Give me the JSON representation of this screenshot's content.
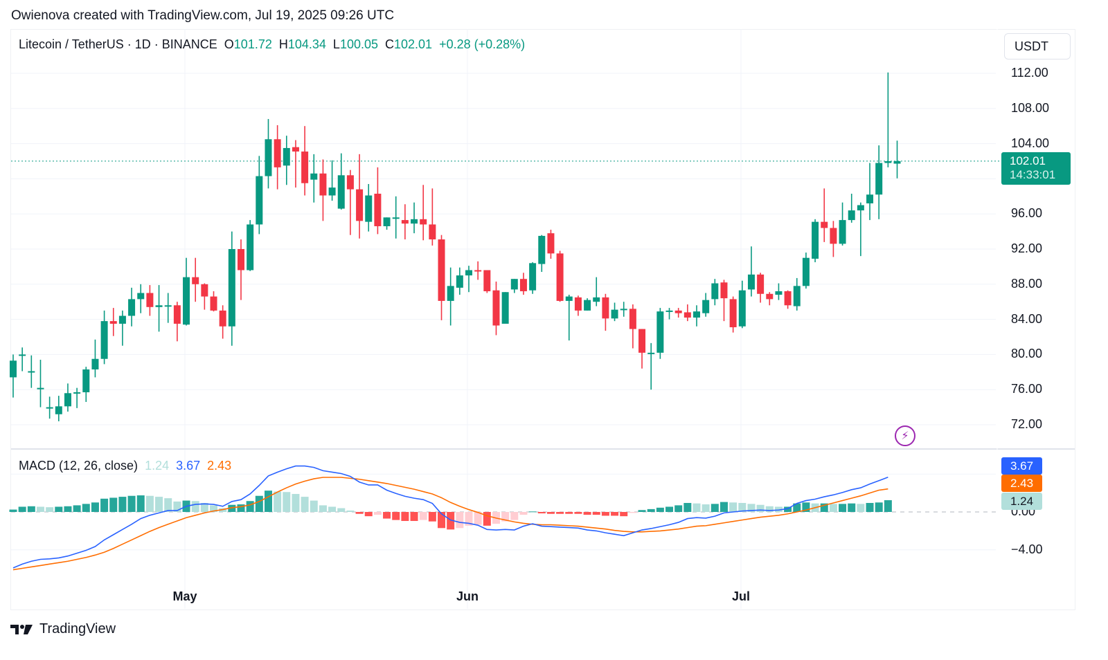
{
  "caption": "Owienova created with TradingView.com, Jul 19, 2025 09:26 UTC",
  "legend": {
    "symbol": "Litecoin / TetherUS · 1D · BINANCE",
    "open_label": "O",
    "open": "101.72",
    "high_label": "H",
    "high": "104.34",
    "low_label": "L",
    "low": "100.05",
    "close_label": "C",
    "close": "102.01",
    "change": "+0.28 (+0.28%)"
  },
  "currency": "USDT",
  "price_tag": {
    "price": "102.01",
    "countdown": "14:33:01"
  },
  "macd": {
    "title": "MACD (12, 26, close)",
    "histogram": "1.24",
    "macd": "3.67",
    "signal": "2.43",
    "tags": {
      "macd": "3.67",
      "signal": "2.43",
      "histogram": "1.24"
    }
  },
  "brand": "TradingView",
  "colors": {
    "up": "#089981",
    "down": "#f23645",
    "macd_line": "#2962ff",
    "signal_line": "#ff6d00",
    "hist_up_strong": "#26a69a",
    "hist_up_weak": "#b2dfdb",
    "hist_down_strong": "#ff5252",
    "hist_down_weak": "#ffcdd2",
    "alert_icon": "#9c27b0"
  },
  "chart_data": [
    {
      "type": "candlestick",
      "title": "Litecoin / TetherUS · 1D · BINANCE",
      "xlabel": "",
      "ylabel": "USDT",
      "x_ticks": [
        "May",
        "Jun",
        "Jul"
      ],
      "y_ticks": [
        "112.00",
        "108.00",
        "104.00",
        "96.00",
        "92.00",
        "88.00",
        "84.00",
        "80.00",
        "76.00",
        "72.00"
      ],
      "ylim": [
        70.5,
        115
      ],
      "last_price": 102.01,
      "x_start": "2025-04-12",
      "x_end": "2025-07-19",
      "ohlc": [
        [
          77.4,
          79.3,
          75.1,
          80.0
        ],
        [
          80.0,
          80.0,
          78.1,
          80.8
        ],
        [
          78.1,
          78.1,
          76.2,
          79.9
        ],
        [
          76.2,
          76.2,
          74.0,
          79.4
        ],
        [
          74.0,
          74.0,
          72.7,
          75.2
        ],
        [
          73.2,
          74.1,
          72.4,
          75.3
        ],
        [
          74.1,
          75.6,
          73.5,
          76.7
        ],
        [
          75.6,
          75.7,
          73.9,
          76.2
        ],
        [
          75.7,
          78.3,
          74.6,
          78.6
        ],
        [
          78.3,
          79.5,
          77.4,
          81.7
        ],
        [
          79.5,
          83.8,
          78.9,
          85.0
        ],
        [
          83.8,
          83.5,
          82.1,
          85.3
        ],
        [
          83.5,
          84.4,
          81.0,
          85.0
        ],
        [
          84.4,
          86.3,
          83.2,
          87.6
        ],
        [
          86.3,
          87.0,
          84.7,
          88.0
        ],
        [
          87.0,
          85.4,
          84.4,
          87.9
        ],
        [
          85.4,
          85.6,
          82.6,
          87.9
        ],
        [
          85.6,
          85.6,
          83.6,
          87.0
        ],
        [
          85.6,
          83.5,
          81.5,
          86.0
        ],
        [
          83.4,
          88.8,
          83.3,
          91.0
        ],
        [
          88.8,
          88.0,
          86.0,
          91.0
        ],
        [
          88.0,
          86.6,
          85.1,
          88.1
        ],
        [
          86.6,
          85.0,
          84.9,
          87.2
        ],
        [
          85.0,
          83.2,
          81.8,
          85.6
        ],
        [
          83.2,
          92.0,
          81.0,
          94.0
        ],
        [
          92.0,
          89.6,
          86.2,
          93.1
        ],
        [
          89.6,
          94.8,
          89.5,
          95.3
        ],
        [
          94.8,
          100.3,
          93.7,
          102.6
        ],
        [
          100.3,
          104.5,
          98.9,
          106.8
        ],
        [
          104.5,
          101.3,
          98.8,
          106.1
        ],
        [
          101.5,
          103.5,
          99.3,
          104.9
        ],
        [
          103.6,
          103.1,
          99.0,
          104.4
        ],
        [
          103.1,
          99.5,
          98.1,
          106.0
        ],
        [
          99.9,
          100.6,
          97.3,
          102.8
        ],
        [
          100.6,
          98.1,
          95.2,
          102.2
        ],
        [
          98.1,
          99.0,
          97.5,
          102.1
        ],
        [
          96.6,
          100.4,
          96.5,
          102.9
        ],
        [
          100.4,
          98.8,
          93.6,
          101.0
        ],
        [
          98.8,
          95.2,
          93.2,
          102.8
        ],
        [
          95.1,
          98.1,
          94.0,
          99.4
        ],
        [
          98.3,
          94.6,
          93.7,
          101.3
        ],
        [
          94.6,
          95.6,
          94.2,
          95.6
        ],
        [
          95.6,
          95.6,
          93.2,
          98.0
        ],
        [
          95.3,
          94.9,
          93.1,
          97.1
        ],
        [
          94.9,
          95.4,
          93.8,
          97.3
        ],
        [
          95.4,
          94.8,
          93.0,
          99.3
        ],
        [
          94.8,
          93.1,
          92.4,
          98.9
        ],
        [
          93.1,
          86.1,
          83.9,
          93.6
        ],
        [
          86.1,
          87.8,
          83.3,
          89.9
        ],
        [
          87.6,
          89.0,
          86.8,
          89.9
        ],
        [
          89.0,
          89.6,
          87.1,
          90.1
        ],
        [
          89.6,
          89.5,
          88.5,
          90.6
        ],
        [
          89.6,
          87.2,
          87.0,
          89.5
        ],
        [
          87.3,
          83.3,
          82.2,
          88.3
        ],
        [
          83.5,
          87.1,
          83.6,
          87.1
        ],
        [
          87.4,
          88.6,
          87.0,
          88.6
        ],
        [
          88.6,
          87.2,
          86.8,
          89.3
        ],
        [
          87.3,
          90.4,
          86.9,
          90.5
        ],
        [
          90.3,
          93.5,
          89.4,
          93.6
        ],
        [
          93.8,
          91.5,
          90.9,
          94.2
        ],
        [
          91.5,
          86.1,
          86.0,
          91.8
        ],
        [
          86.1,
          86.6,
          81.6,
          86.8
        ],
        [
          86.5,
          85.0,
          84.4,
          86.7
        ],
        [
          85.0,
          86.2,
          85.0,
          86.4
        ],
        [
          86.0,
          86.5,
          85.5,
          88.8
        ],
        [
          86.5,
          84.1,
          82.7,
          86.9
        ],
        [
          84.1,
          85.1,
          83.8,
          85.9
        ],
        [
          85.2,
          85.2,
          84.3,
          86.0
        ],
        [
          85.2,
          82.9,
          80.7,
          85.7
        ],
        [
          82.9,
          80.2,
          78.4,
          82.9
        ],
        [
          80.2,
          80.2,
          76.0,
          81.3
        ],
        [
          80.2,
          84.9,
          79.5,
          85.3
        ],
        [
          85.0,
          85.0,
          84.0,
          85.3
        ],
        [
          85.0,
          84.7,
          84.2,
          85.3
        ],
        [
          84.8,
          84.2,
          83.8,
          85.7
        ],
        [
          84.2,
          84.9,
          83.2,
          85.6
        ],
        [
          84.7,
          86.2,
          84.3,
          87.0
        ],
        [
          86.3,
          88.1,
          85.6,
          88.6
        ],
        [
          88.2,
          86.4,
          83.8,
          88.5
        ],
        [
          86.3,
          83.1,
          82.5,
          86.6
        ],
        [
          83.2,
          87.3,
          83.0,
          88.4
        ],
        [
          87.4,
          89.1,
          86.6,
          92.3
        ],
        [
          89.1,
          86.9,
          85.9,
          89.3
        ],
        [
          86.9,
          86.3,
          85.6,
          87.1
        ],
        [
          86.8,
          87.2,
          86.2,
          88.1
        ],
        [
          87.2,
          85.6,
          85.2,
          87.3
        ],
        [
          85.5,
          87.8,
          85.0,
          88.7
        ],
        [
          87.8,
          91.0,
          87.5,
          91.6
        ],
        [
          90.9,
          95.1,
          90.5,
          95.4
        ],
        [
          95.1,
          94.4,
          92.8,
          98.9
        ],
        [
          94.4,
          92.6,
          91.1,
          95.2
        ],
        [
          92.6,
          95.3,
          92.4,
          97.3
        ],
        [
          95.3,
          96.4,
          95.0,
          98.3
        ],
        [
          96.4,
          97.0,
          91.2,
          97.3
        ],
        [
          97.2,
          98.2,
          95.3,
          101.8
        ],
        [
          98.2,
          101.8,
          95.4,
          103.8
        ],
        [
          101.8,
          102.0,
          101.3,
          112.1
        ],
        [
          101.72,
          102.01,
          100.05,
          104.34
        ]
      ]
    },
    {
      "type": "line+bar",
      "title": "MACD (12, 26, close)",
      "y_ticks": [
        "0.00",
        "-4.00"
      ],
      "ylim": [
        -6.5,
        6.5
      ],
      "series": [
        {
          "name": "MACD",
          "color": "#2962ff",
          "last": 3.67
        },
        {
          "name": "Signal",
          "color": "#ff6d00",
          "last": 2.43
        },
        {
          "name": "Histogram",
          "last": 1.24
        }
      ],
      "macd_values": [
        -5.9,
        -5.5,
        -5.2,
        -5.0,
        -4.95,
        -4.85,
        -4.65,
        -4.35,
        -4.05,
        -3.65,
        -2.95,
        -2.4,
        -1.85,
        -1.3,
        -0.7,
        -0.35,
        -0.1,
        0.15,
        0.15,
        0.6,
        0.8,
        0.85,
        0.8,
        0.6,
        1.1,
        1.3,
        1.9,
        2.8,
        3.8,
        4.2,
        4.55,
        4.85,
        4.85,
        4.7,
        4.35,
        4.2,
        4.05,
        3.75,
        3.15,
        2.85,
        2.85,
        2.3,
        1.95,
        1.65,
        1.45,
        1.3,
        0.9,
        -0.2,
        -0.85,
        -1.1,
        -1.2,
        -1.4,
        -1.85,
        -1.9,
        -1.85,
        -1.9,
        -1.5,
        -1.25,
        -1.5,
        -1.55,
        -1.6,
        -1.65,
        -1.7,
        -1.9,
        -2.0,
        -2.2,
        -2.35,
        -2.5,
        -2.2,
        -1.9,
        -1.75,
        -1.55,
        -1.35,
        -1.1,
        -0.7,
        -0.6,
        -0.65,
        -0.45,
        -0.1,
        0.0,
        0.1,
        0.15,
        0.2,
        0.15,
        0.2,
        0.35,
        0.9,
        1.2,
        1.35,
        1.6,
        1.8,
        2.05,
        2.35,
        2.55,
        2.95,
        3.3,
        3.67
      ],
      "signal_values": [
        -6.1,
        -5.95,
        -5.8,
        -5.65,
        -5.5,
        -5.35,
        -5.2,
        -5.0,
        -4.8,
        -4.55,
        -4.25,
        -3.85,
        -3.4,
        -2.95,
        -2.5,
        -2.05,
        -1.65,
        -1.3,
        -0.95,
        -0.6,
        -0.35,
        -0.1,
        0.1,
        0.25,
        0.45,
        0.55,
        0.75,
        1.1,
        1.6,
        2.1,
        2.55,
        2.95,
        3.25,
        3.5,
        3.65,
        3.65,
        3.65,
        3.55,
        3.45,
        3.3,
        3.15,
        3.0,
        2.8,
        2.6,
        2.4,
        2.15,
        1.9,
        1.5,
        1.0,
        0.6,
        0.25,
        -0.05,
        -0.4,
        -0.65,
        -0.85,
        -1.05,
        -1.2,
        -1.3,
        -1.35,
        -1.35,
        -1.4,
        -1.45,
        -1.5,
        -1.6,
        -1.7,
        -1.8,
        -1.95,
        -2.05,
        -2.1,
        -2.1,
        -2.05,
        -2.0,
        -1.9,
        -1.8,
        -1.65,
        -1.5,
        -1.45,
        -1.3,
        -1.15,
        -1.0,
        -0.85,
        -0.7,
        -0.55,
        -0.45,
        -0.35,
        -0.2,
        0.0,
        0.2,
        0.45,
        0.7,
        0.95,
        1.2,
        1.45,
        1.7,
        2.0,
        2.3,
        2.43
      ],
      "histogram_values": [
        0.25,
        0.55,
        0.6,
        0.55,
        0.5,
        0.55,
        0.6,
        0.7,
        0.85,
        1.0,
        1.4,
        1.5,
        1.6,
        1.7,
        1.75,
        1.7,
        1.6,
        1.45,
        1.1,
        1.2,
        1.15,
        0.95,
        0.7,
        0.4,
        0.75,
        0.8,
        1.15,
        1.7,
        2.25,
        2.15,
        2.1,
        1.9,
        1.6,
        1.2,
        0.7,
        0.55,
        0.4,
        0.15,
        -0.2,
        -0.45,
        -0.3,
        -0.7,
        -0.85,
        -0.95,
        -0.95,
        -0.85,
        -1.0,
        -1.7,
        -1.85,
        -1.7,
        -1.45,
        -1.35,
        -1.45,
        -1.25,
        -1.0,
        -0.85,
        -0.3,
        0.05,
        -0.15,
        -0.2,
        -0.2,
        -0.2,
        -0.2,
        -0.3,
        -0.3,
        -0.4,
        -0.4,
        -0.45,
        -0.1,
        0.2,
        0.3,
        0.45,
        0.55,
        0.7,
        0.95,
        0.9,
        0.8,
        0.85,
        1.05,
        1.0,
        0.95,
        0.85,
        0.75,
        0.6,
        0.55,
        0.55,
        0.9,
        1.0,
        0.9,
        0.9,
        0.85,
        0.85,
        0.9,
        0.85,
        0.95,
        1.0,
        1.24
      ]
    }
  ]
}
